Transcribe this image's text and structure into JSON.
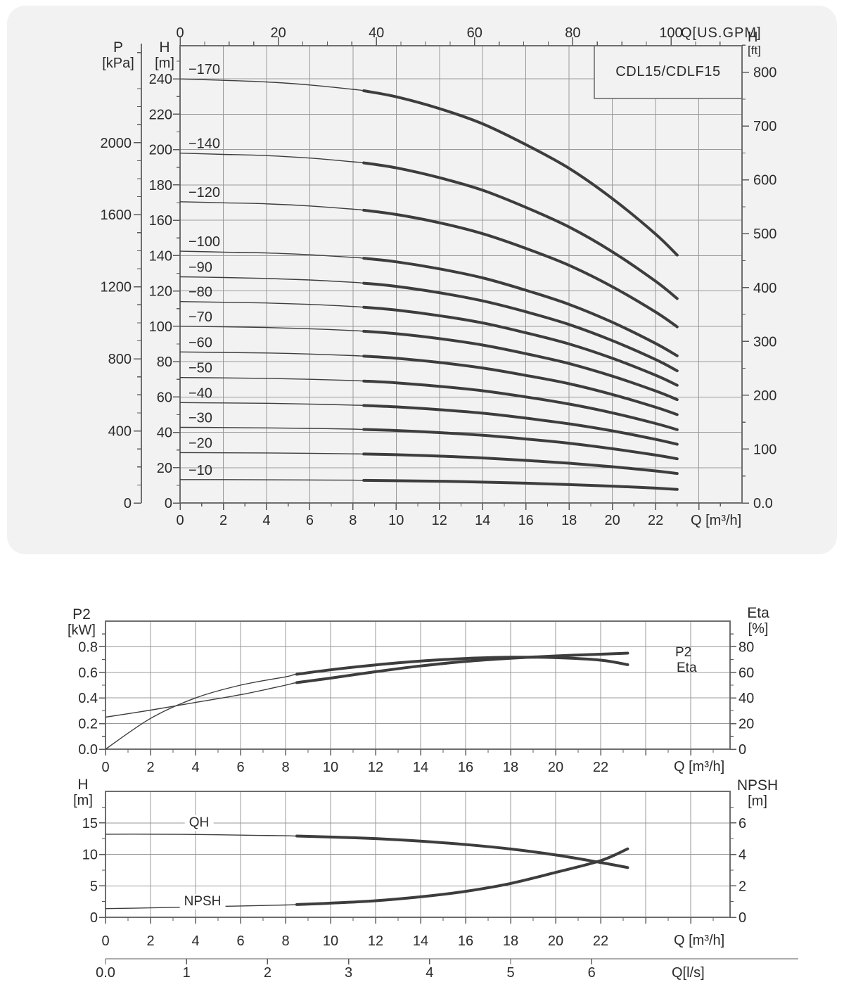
{
  "labels": {
    "p_title": "P",
    "p_unit": "[kPa]",
    "h_title": "H",
    "h_unit": "[m]",
    "gpm_label": "Q[US.GPM]",
    "ft_title": "H",
    "ft_unit": "[ft]",
    "q_m3h": "Q [m³/h]",
    "p2_title": "P2",
    "p2_unit": "[kW]",
    "eta_title": "Eta",
    "eta_unit": "[%]",
    "h2_title": "H",
    "h2_unit": "[m]",
    "npsh_title": "NPSH",
    "npsh_unit": "[m]",
    "q_ls": "Q[l/s]",
    "p2_curve": "P2",
    "eta_curve": "Eta",
    "qh_curve": "QH",
    "npsh_curve": "NPSH"
  },
  "colors": {
    "panel": "#f2f2f2",
    "grid": "#999999",
    "border": "#6e6e6e",
    "tick": "#5a5a5a",
    "curve": "#3d3d3d",
    "text": "#2b2b2b",
    "box_fill": "#f2f2f2"
  },
  "chart_data": [
    {
      "id": "head-curves",
      "type": "line",
      "title": "CDL15/CDLF15",
      "xlabel": "Q [m³/h]",
      "x2label": "Q[US.GPM]",
      "ylabel": "H [m]",
      "ylabel_outer": "P [kPa]",
      "ylabel_right": "H [ft]",
      "xlim": [
        0,
        26
      ],
      "ylim": [
        0,
        258.8
      ],
      "duty_start_index": 5,
      "x": [
        0,
        2,
        4,
        6,
        8,
        8.5,
        10,
        12,
        14,
        16,
        18,
        20,
        22,
        23
      ],
      "series": [
        {
          "name": "−170",
          "values": [
            240.0,
            239.2,
            238.3,
            236.6,
            234.1,
            233.3,
            229.9,
            223.2,
            214.6,
            202.8,
            189.4,
            172.3,
            152.2,
            140.3
          ]
        },
        {
          "name": "−140",
          "values": [
            198.0,
            197.3,
            196.6,
            195.2,
            193.1,
            192.5,
            189.7,
            184.1,
            177.0,
            167.3,
            156.2,
            142.2,
            125.5,
            115.7
          ]
        },
        {
          "name": "−120",
          "values": [
            170.5,
            169.9,
            169.3,
            168.1,
            166.3,
            165.7,
            163.3,
            158.6,
            152.4,
            144.1,
            134.5,
            122.4,
            108.1,
            99.7
          ]
        },
        {
          "name": "−100",
          "values": [
            142.5,
            142.0,
            141.5,
            140.5,
            139.0,
            138.5,
            136.5,
            132.5,
            127.4,
            120.4,
            112.4,
            102.3,
            90.3,
            83.3
          ]
        },
        {
          "name": "−90",
          "values": [
            128.0,
            127.6,
            127.1,
            126.2,
            124.9,
            124.4,
            122.6,
            119.0,
            114.4,
            108.2,
            101.0,
            91.9,
            81.2,
            74.8
          ]
        },
        {
          "name": "−80",
          "values": [
            114.0,
            113.6,
            113.2,
            112.4,
            111.2,
            110.8,
            109.2,
            106.0,
            101.9,
            96.3,
            90.0,
            81.9,
            72.3,
            66.6
          ]
        },
        {
          "name": "−70",
          "values": [
            100.0,
            99.7,
            99.3,
            98.6,
            97.6,
            97.2,
            95.8,
            93.0,
            89.4,
            84.5,
            78.9,
            71.8,
            63.4,
            58.5
          ]
        },
        {
          "name": "−60",
          "values": [
            85.5,
            85.2,
            84.9,
            84.3,
            83.4,
            83.1,
            81.9,
            79.5,
            76.4,
            72.2,
            67.5,
            61.4,
            54.2,
            50.0
          ]
        },
        {
          "name": "−50",
          "values": [
            71.0,
            70.8,
            70.5,
            70.0,
            69.3,
            69.0,
            68.0,
            66.0,
            63.5,
            60.0,
            56.0,
            51.0,
            45.0,
            41.5
          ]
        },
        {
          "name": "−40",
          "values": [
            56.8,
            56.6,
            56.4,
            56.0,
            55.4,
            55.2,
            54.4,
            52.8,
            50.8,
            48.0,
            44.8,
            40.8,
            36.0,
            33.2
          ]
        },
        {
          "name": "−30",
          "values": [
            42.8,
            42.7,
            42.5,
            42.2,
            41.8,
            41.6,
            41.0,
            39.8,
            38.3,
            36.2,
            33.8,
            30.7,
            27.1,
            25.0
          ]
        },
        {
          "name": "−20",
          "values": [
            28.5,
            28.4,
            28.3,
            28.1,
            27.8,
            27.7,
            27.3,
            26.5,
            25.5,
            24.1,
            22.5,
            20.5,
            18.1,
            16.7
          ]
        },
        {
          "name": "−10",
          "values": [
            13.2,
            13.2,
            13.1,
            13.0,
            12.9,
            12.8,
            12.6,
            12.3,
            11.8,
            11.2,
            10.4,
            9.5,
            8.4,
            7.7
          ]
        }
      ],
      "axis_ticks": {
        "x_labels": [
          0,
          2,
          4,
          6,
          8,
          10,
          12,
          14,
          16,
          18,
          20,
          22
        ],
        "gpm_labels": [
          0,
          20,
          40,
          60,
          80,
          100
        ],
        "h_labels": [
          0,
          20,
          40,
          60,
          80,
          100,
          120,
          140,
          160,
          180,
          200,
          220,
          240
        ],
        "p_labels": [
          0,
          400,
          800,
          1200,
          1600,
          2000
        ],
        "ft_values": [
          0,
          100,
          200,
          300,
          400,
          500,
          600,
          700,
          800
        ],
        "ft_labels": [
          "0.0",
          "100",
          "200",
          "300",
          "400",
          "500",
          "600",
          "700",
          "800"
        ]
      }
    },
    {
      "id": "power-efficiency",
      "type": "line",
      "xlabel": "Q [m³/h]",
      "ylabel": "P2 [kW]",
      "ylabel_right": "Eta [%]",
      "xlim": [
        0,
        27.75
      ],
      "ylim": [
        0,
        1.0
      ],
      "ylim_right": [
        0,
        100
      ],
      "duty_start_index": 5,
      "x": [
        0,
        2,
        4,
        6,
        8,
        8.5,
        10,
        12,
        14,
        16,
        18,
        20,
        22,
        23.2
      ],
      "series": [
        {
          "name": "P2",
          "axis": "left",
          "values": [
            0.25,
            0.305,
            0.365,
            0.425,
            0.5,
            0.52,
            0.555,
            0.605,
            0.65,
            0.685,
            0.71,
            0.728,
            0.742,
            0.75
          ]
        },
        {
          "name": "Eta",
          "axis": "right",
          "values": [
            0,
            24,
            40,
            50,
            56.5,
            58.5,
            62,
            65.8,
            68.8,
            70.8,
            71.8,
            71.5,
            69.5,
            66
          ]
        }
      ],
      "axis_ticks": {
        "x_labels": [
          0,
          2,
          4,
          6,
          8,
          10,
          12,
          14,
          16,
          18,
          20,
          22
        ],
        "left_values": [
          0,
          0.2,
          0.4,
          0.6,
          0.8
        ],
        "left_labels": [
          "0.0",
          "0.2",
          "0.4",
          "0.6",
          "0.8"
        ],
        "right_labels": [
          0,
          20,
          40,
          60,
          80
        ]
      }
    },
    {
      "id": "qh-npsh",
      "type": "line",
      "xlabel": "Q [m³/h]",
      "x2label": "Q[l/s]",
      "ylabel": "H [m]",
      "ylabel_right": "NPSH [m]",
      "xlim": [
        0,
        27.75
      ],
      "ylim": [
        0,
        20
      ],
      "ylim_right": [
        0,
        8
      ],
      "duty_start_index": 5,
      "x": [
        0,
        2,
        4,
        6,
        8,
        8.5,
        10,
        12,
        14,
        16,
        18,
        20,
        22,
        23.2
      ],
      "series": [
        {
          "name": "QH",
          "axis": "left",
          "values": [
            13.2,
            13.2,
            13.15,
            13.05,
            12.95,
            12.9,
            12.75,
            12.5,
            12.1,
            11.55,
            10.85,
            9.9,
            8.7,
            7.9
          ]
        },
        {
          "name": "NPSH",
          "axis": "right",
          "values": [
            0.55,
            0.6,
            0.66,
            0.72,
            0.78,
            0.81,
            0.9,
            1.05,
            1.3,
            1.65,
            2.15,
            2.85,
            3.6,
            4.35
          ]
        }
      ],
      "axis_ticks": {
        "x_labels": [
          0,
          2,
          4,
          6,
          8,
          10,
          12,
          14,
          16,
          18,
          20,
          22
        ],
        "left_labels": [
          0,
          5,
          10,
          15
        ],
        "right_labels": [
          0,
          2,
          4,
          6
        ],
        "ls_values": [
          0,
          1,
          2,
          3,
          4,
          5,
          6
        ],
        "ls_labels": [
          "0.0",
          "1",
          "2",
          "3",
          "4",
          "5",
          "6"
        ]
      }
    }
  ]
}
